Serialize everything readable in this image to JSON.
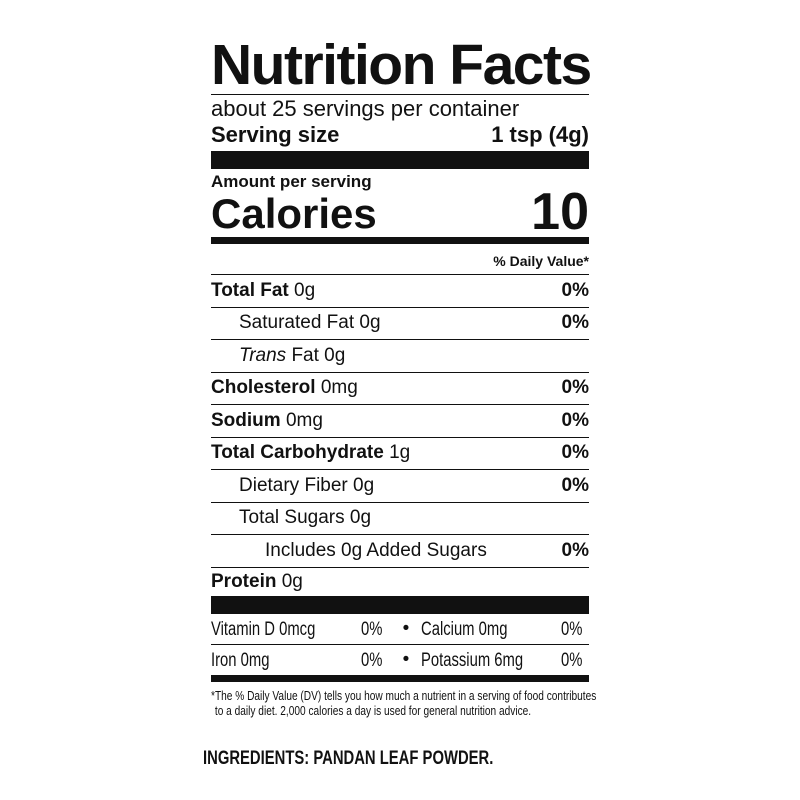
{
  "title": "Nutrition Facts",
  "servings_per_container": "about 25 servings per container",
  "serving_size": {
    "label": "Serving size",
    "value": "1 tsp (4g)"
  },
  "amount_per_serving": "Amount per serving",
  "calories": {
    "label": "Calories",
    "value": "10"
  },
  "daily_value_header": "% Daily Value*",
  "nutrients": [
    {
      "name": "Total Fat",
      "amount": "0g",
      "dv": "0%"
    },
    {
      "name": "Saturated Fat",
      "amount": "0g",
      "dv": "0%"
    },
    {
      "name": "Trans",
      "amount": "Fat 0g",
      "dv": ""
    },
    {
      "name": "Cholesterol",
      "amount": "0mg",
      "dv": "0%"
    },
    {
      "name": "Sodium",
      "amount": "0mg",
      "dv": "0%"
    },
    {
      "name": "Total Carbohydrate",
      "amount": "1g",
      "dv": "0%"
    },
    {
      "name": "Dietary Fiber",
      "amount": "0g",
      "dv": "0%"
    },
    {
      "name": "Total Sugars",
      "amount": "0g",
      "dv": ""
    },
    {
      "name": "Includes 0g Added Sugars",
      "amount": "",
      "dv": "0%"
    },
    {
      "name": "Protein",
      "amount": "0g",
      "dv": ""
    }
  ],
  "vitamins": [
    {
      "name": "Vitamin D 0mcg",
      "dv": "0%"
    },
    {
      "name": "Calcium 0mg",
      "dv": "0%"
    },
    {
      "name": "Iron 0mg",
      "dv": "0%"
    },
    {
      "name": "Potassium 6mg",
      "dv": "0%"
    }
  ],
  "bullet": "•",
  "footnote_line1": "*The % Daily Value (DV) tells you how much a nutrient in a serving of food contributes",
  "footnote_line2": "to a daily diet. 2,000 calories a day is used for general nutrition advice.",
  "ingredients": "INGREDIENTS: PANDAN LEAF POWDER."
}
